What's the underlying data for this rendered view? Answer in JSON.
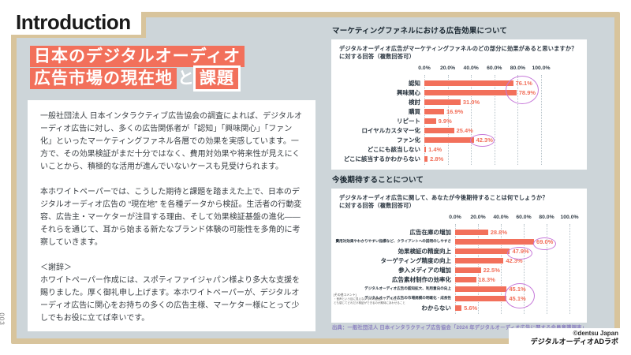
{
  "page": {
    "number": "003",
    "section_label": "Introduction"
  },
  "headline": {
    "line1": "日本のデジタルオーディオ",
    "line2_highlight": "広告市場の現在地",
    "line2_plain": "と",
    "line2_emphasis": "課題"
  },
  "body": {
    "paragraph1": "一般社団法人 日本インタラクティブ広告協会の調査によれば、デジタルオーディオ広告に対し、多くの広告関係者が「認知」「興味関心」「ファン化」といったマーケティングファネル各層での効果を実感しています。一方で、その効果検証がまだ十分ではなく、費用対効果や将来性が見えにくいことから、積極的な活用が進んでいないケースも見受けられます。",
    "paragraph2": "本ホワイトペーパーでは、こうした期待と課題を踏まえた上で、日本のデジタルオーディオ広告の “現在地” を各種データから検証。生活者の行動変容、広告主・マーケターが注目する理由、そして効果検証基盤の進化——それらを通じて、耳から始まる新たなブランド体験の可能性を多角的に考察していきます。",
    "ack_title": "＜謝辞＞",
    "paragraph3": "ホワイトペーパー作成には、スポティファイジャパン様より多大な支援を賜りました。厚く御礼申し上げます。本ホワイトペーパーが、デジタルオーディオ広告に関心をお持ちの多くの広告主様、マーケター様にとって少しでもお役に立てば幸いです。"
  },
  "chart_data": [
    {
      "type": "bar",
      "orientation": "horizontal",
      "title": "マーケティングファネルにおける広告効果について",
      "subtitle_line1": "デジタルオーディオ広告がマーケティングファネルのどの部分に効果があると思いますか？",
      "subtitle_line2": "に対する回答（複数回答可）",
      "x_ticks": [
        "0.0%",
        "20.0%",
        "40.0%",
        "60.0%",
        "80.0%",
        "100.0%"
      ],
      "xlim": [
        0,
        100
      ],
      "grid": true,
      "categories": [
        "認知",
        "興味関心",
        "検討",
        "購買",
        "リピート",
        "ロイヤルカスタマー化",
        "ファン化",
        "どこにも該当しない",
        "どこに該当するかわからない"
      ],
      "values": [
        76.1,
        78.9,
        31.0,
        16.9,
        9.9,
        25.4,
        42.3,
        1.4,
        2.8
      ],
      "circled_rows": [
        0,
        1,
        6
      ]
    },
    {
      "type": "bar",
      "orientation": "horizontal",
      "title": "今後期待することについて",
      "subtitle_line1": "デジタルオーディオ広告に関して、あなたが今後期待することは何でしょうか？",
      "subtitle_line2": "に対する回答（複数回答可）",
      "x_ticks": [
        "0.0%",
        "20.0%",
        "40.0%",
        "60.0%",
        "80.0%",
        "100.0%"
      ],
      "xlim": [
        0,
        100
      ],
      "grid": true,
      "categories": [
        "広告在庫の増加",
        "費用対効果やわかりやすい指標など、クライアントへの説明のしやすさ",
        "効果検証の精度向上",
        "ターゲティング精度の向上",
        "参入メディアの増加",
        "広告素材制作の効率化",
        "デジタルオーディオ広告の認知拡大、利用意向の向上",
        "デジタルオーディオ広告の市場規模の明確化・成長性",
        "わからない"
      ],
      "values": [
        28.8,
        69.0,
        47.9,
        42.3,
        22.5,
        18.3,
        45.1,
        45.1,
        5.6
      ],
      "circled_rows": [
        1,
        2,
        6,
        7
      ],
      "note": {
        "label": "[その他コメント]",
        "line1": "・音声という目に見えないものの動画メディア以上",
        "line2": "とも感じてどれだけ検証ができるのか期待にあわせること"
      }
    }
  ],
  "footer": {
    "source": "出典：一般社団法人 日本インタラクティブ広告協会「2024 年デジタルオーディオ広告に関する会員意識調査」",
    "credit_line1": "©dentsu Japan",
    "credit_line2": "デジタルオーディオADラボ"
  },
  "colors": {
    "accent": "#f2705b",
    "circle": "#c678d9",
    "frame": "#d8c49c",
    "panel": "#cdd5d9",
    "source_text": "#8a7fc0"
  }
}
